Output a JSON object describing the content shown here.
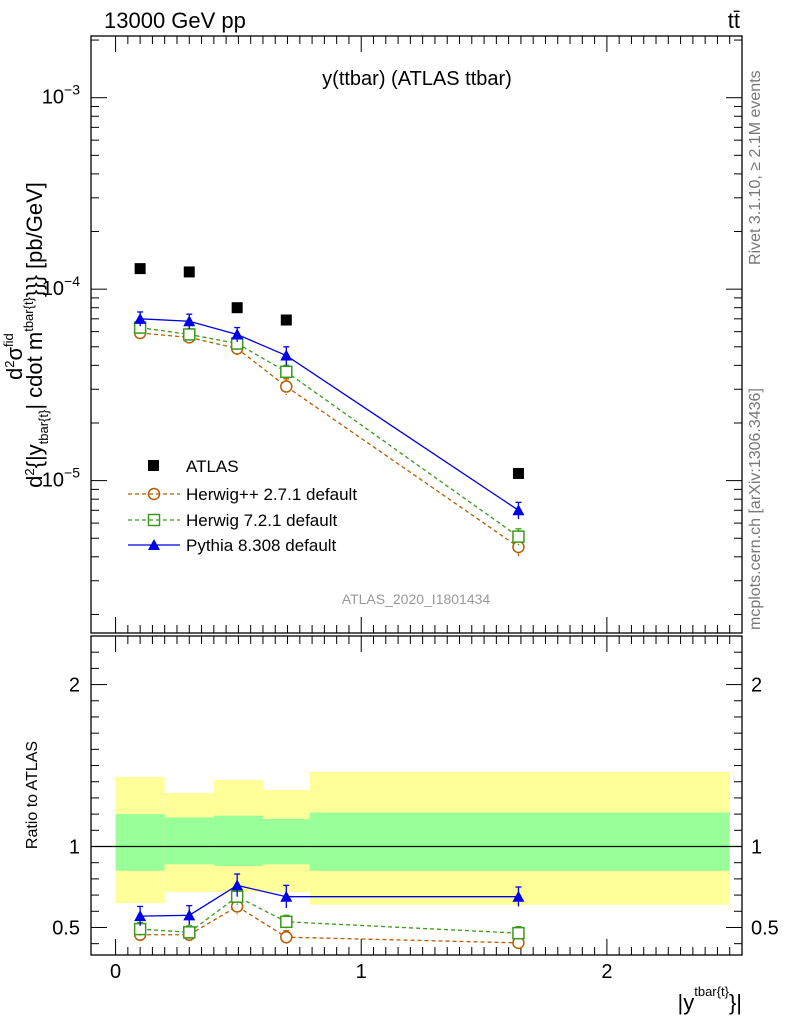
{
  "header": {
    "left": "13000 GeV pp",
    "right": "tt̄"
  },
  "side_labels": {
    "rivet": "Rivet 3.1.10, ≥ 2.1M events",
    "mcplots": "mcplots.cern.ch [arXiv:1306.3436]"
  },
  "colors": {
    "atlas": "#000000",
    "herwigpp": "#b85c00",
    "herwig7": "#3a9a1a",
    "pythia": "#0000e6",
    "band_outer": "#ffff99",
    "band_inner": "#99ff99"
  },
  "chart_data": [
    {
      "type": "scatter",
      "title": "y(ttbar) (ATLAS ttbar)",
      "watermark": "ATLAS_2020_I1801434",
      "ylabel_parts": {
        "num": "d",
        "num_sup": "2",
        "sigma": "σ",
        "sigma_sup": "fid",
        "den": "d",
        "den_sup": "2",
        "den_rest": "{|y",
        "den_sub": "tbar{t}",
        "den_tail": "| cdot m",
        "den_tail_sup": "tbar{t}",
        "den_end": "}}} [pb/GeV]"
      },
      "yscale": "log",
      "ylim": [
        1.6e-06,
        0.0021
      ],
      "xlim": [
        -0.1,
        2.55
      ],
      "ytick_labels": [
        {
          "base": "10",
          "exp": "−5",
          "value": 1e-05
        },
        {
          "base": "10",
          "exp": "−4",
          "value": 0.0001
        },
        {
          "base": "10",
          "exp": "−3",
          "value": 0.001
        }
      ],
      "legend_position": "lower-left",
      "series": [
        {
          "name": "ATLAS",
          "key": "atlas",
          "marker": "square",
          "line": "none",
          "x": [
            0.1,
            0.3,
            0.495,
            0.695,
            1.64
          ],
          "y": [
            0.000128,
            0.000123,
            8e-05,
            6.9e-05,
            1.09e-05
          ],
          "yerr": [
            0,
            0,
            0,
            0,
            0
          ]
        },
        {
          "name": "Herwig++ 2.7.1 default",
          "key": "herwigpp",
          "marker": "circle",
          "line": "dashed",
          "x": [
            0.1,
            0.3,
            0.495,
            0.695,
            1.64
          ],
          "y": [
            5.9e-05,
            5.6e-05,
            4.9e-05,
            3.1e-05,
            4.5e-06
          ],
          "yerr": [
            4e-06,
            4e-06,
            4e-06,
            3e-06,
            5e-07
          ]
        },
        {
          "name": "Herwig 7.2.1 default",
          "key": "herwig7",
          "marker": "open-square",
          "line": "dashed",
          "x": [
            0.1,
            0.3,
            0.495,
            0.695,
            1.64
          ],
          "y": [
            6.3e-05,
            5.8e-05,
            5.2e-05,
            3.7e-05,
            5.1e-06
          ],
          "yerr": [
            4e-06,
            4e-06,
            4e-06,
            3e-06,
            5e-07
          ]
        },
        {
          "name": "Pythia 8.308 default",
          "key": "pythia",
          "marker": "triangle",
          "line": "solid",
          "x": [
            0.1,
            0.3,
            0.495,
            0.695,
            1.64
          ],
          "y": [
            7e-05,
            6.8e-05,
            5.8e-05,
            4.5e-05,
            7e-06
          ],
          "yerr": [
            6e-06,
            6e-06,
            5e-06,
            5e-06,
            7e-07
          ]
        }
      ]
    },
    {
      "type": "scatter",
      "ylabel": "Ratio to ATLAS",
      "ylim": [
        0.33,
        2.3
      ],
      "xlim": [
        -0.1,
        2.55
      ],
      "xticks": [
        0,
        1,
        2
      ],
      "yticks": [
        0.5,
        1,
        2
      ],
      "xlabel_parts": {
        "pre": "|y",
        "sup": "tbar{t}",
        "post": "}|"
      },
      "bands": {
        "edges": [
          0,
          0.2,
          0.4,
          0.6,
          0.79,
          2.5
        ],
        "outer_low": [
          0.65,
          0.72,
          0.72,
          0.72,
          0.64
        ],
        "outer_high": [
          1.43,
          1.33,
          1.41,
          1.35,
          1.46
        ],
        "inner_low": [
          0.85,
          0.89,
          0.88,
          0.89,
          0.85
        ],
        "inner_high": [
          1.2,
          1.18,
          1.19,
          1.17,
          1.21
        ]
      },
      "series": [
        {
          "name": "Herwig++ 2.7.1 default",
          "key": "herwigpp",
          "marker": "circle",
          "line": "dashed",
          "x": [
            0.1,
            0.3,
            0.495,
            0.695,
            1.64
          ],
          "y": [
            0.455,
            0.455,
            0.63,
            0.44,
            0.405
          ],
          "yerr": [
            0.04,
            0.04,
            0.05,
            0.04,
            0.03
          ]
        },
        {
          "name": "Herwig 7.2.1 default",
          "key": "herwig7",
          "marker": "open-square",
          "line": "dashed",
          "x": [
            0.1,
            0.3,
            0.495,
            0.695,
            1.64
          ],
          "y": [
            0.49,
            0.47,
            0.69,
            0.535,
            0.465
          ],
          "yerr": [
            0.04,
            0.04,
            0.05,
            0.04,
            0.04
          ]
        },
        {
          "name": "Pythia 8.308 default",
          "key": "pythia",
          "marker": "triangle",
          "line": "solid",
          "x": [
            0.1,
            0.3,
            0.495,
            0.695,
            1.64
          ],
          "y": [
            0.57,
            0.575,
            0.76,
            0.69,
            0.69
          ],
          "yerr": [
            0.06,
            0.06,
            0.07,
            0.07,
            0.06
          ]
        }
      ]
    }
  ]
}
